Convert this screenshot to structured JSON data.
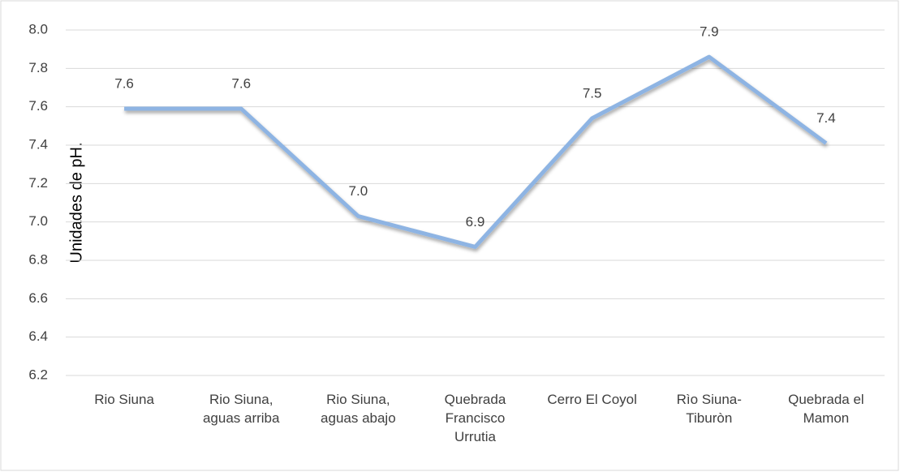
{
  "chart_data": {
    "type": "line",
    "y_label": "Unidades de pH.",
    "categories": [
      "Rio Siuna",
      "Rio Siuna, aguas arriba",
      "Rio Siuna, aguas abajo",
      "Quebrada Francisco Urrutia",
      "Cerro El Coyol",
      "Rìo Siuna-Tiburòn",
      "Quebrada el Mamon"
    ],
    "series": [
      {
        "name": "pH",
        "color": "#8eb4e3",
        "values": [
          7.59,
          7.59,
          7.03,
          6.87,
          7.54,
          7.86,
          7.41
        ],
        "value_labels": [
          "7.6",
          "7.6",
          "7.0",
          "6.9",
          "7.5",
          "7.9",
          "7.4"
        ]
      }
    ],
    "ylim": [
      6.2,
      8.0
    ],
    "yticks": [
      6.2,
      6.4,
      6.6,
      6.8,
      {
        "value": 7,
        "label": "7.0"
      },
      7.2,
      7.4,
      7.6,
      7.8,
      {
        "value": 8,
        "label": "8.0"
      }
    ],
    "grid": true
  }
}
